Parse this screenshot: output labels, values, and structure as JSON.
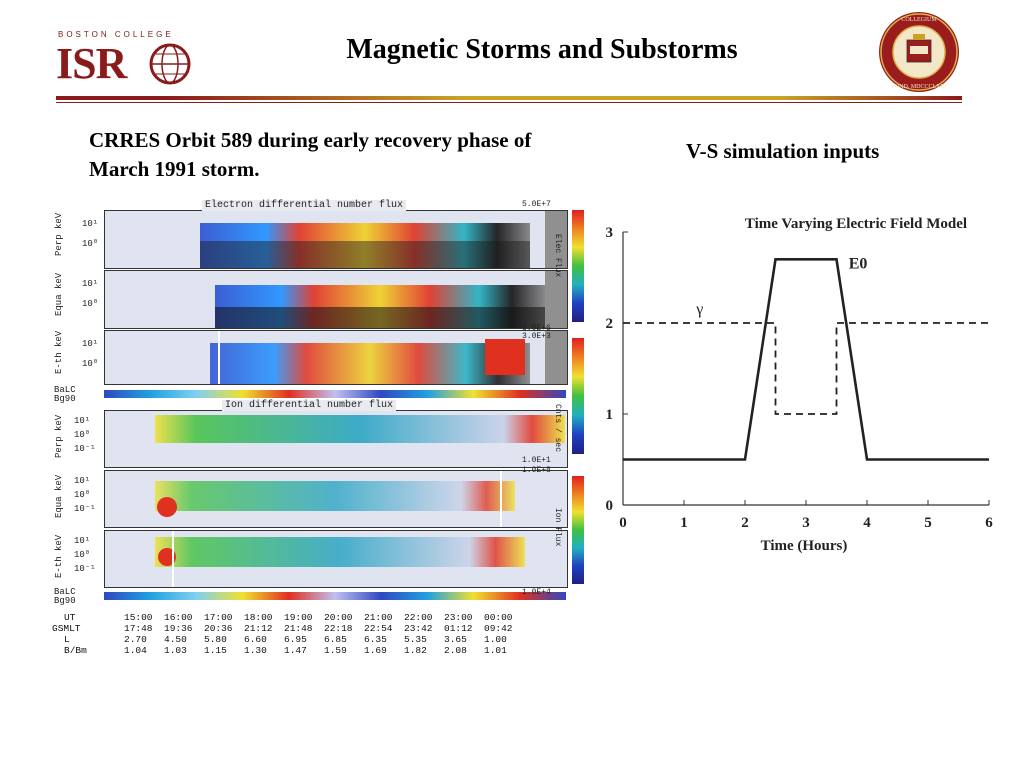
{
  "header": {
    "logo_small": "BOSTON COLLEGE",
    "logo_main": "ISR",
    "title": "Magnetic Storms  and Substorms",
    "seal_text": "COLLEGIUM BOSTONIENSE FUND. MDCCCLXIII"
  },
  "captions": {
    "left": "CRRES Orbit 589 during early recovery phase of March 1991 storm.",
    "right": "V-S simulation inputs"
  },
  "crres": {
    "electron_title": "Electron differential number flux",
    "ion_title": "Ion differential number flux",
    "panels": [
      {
        "label": "Perp\nkeV",
        "ticks": [
          "10¹",
          "10⁰"
        ]
      },
      {
        "label": "Equa\nkeV",
        "ticks": [
          "10¹",
          "10⁰"
        ]
      },
      {
        "label": "E-th\nkeV",
        "ticks": [
          "10¹",
          "10⁰"
        ]
      },
      {
        "label": "Perp\nkeV",
        "ticks": [
          "10¹",
          "10⁰",
          "10⁻¹"
        ]
      },
      {
        "label": "Equa\nkeV",
        "ticks": [
          "10¹",
          "10⁰",
          "10⁻¹"
        ]
      },
      {
        "label": "E-th\nkeV",
        "ticks": [
          "10¹",
          "10⁰",
          "10⁻¹"
        ]
      }
    ],
    "strip_labels": [
      "BaLC\nBg90",
      "BaLC\nBg90"
    ],
    "colorbar": {
      "elec_max": "5.0E+7",
      "elec_min": "3.0E+6",
      "elec_label": "Elec Flux",
      "units_label": "Cnts / sec",
      "mid_top": "3.0E+3",
      "mid_bottom": "1.0E+1",
      "ion_max": "1.0E+8",
      "ion_min": "1.0E+4",
      "ion_label": "Ion Flux"
    },
    "table": {
      "rows": [
        {
          "label": "UT",
          "values": [
            "15:00",
            "16:00",
            "17:00",
            "18:00",
            "19:00",
            "20:00",
            "21:00",
            "22:00",
            "23:00",
            "00:00"
          ]
        },
        {
          "label": "GSMLT",
          "values": [
            "17:48",
            "19:36",
            "20:36",
            "21:12",
            "21:48",
            "22:18",
            "22:54",
            "23:42",
            "01:12",
            "09:42"
          ]
        },
        {
          "label": "L",
          "values": [
            "2.70",
            "4.50",
            "5.80",
            "6.60",
            "6.95",
            "6.85",
            "6.35",
            "5.35",
            "3.65",
            "1.00"
          ]
        },
        {
          "label": "B/Bm",
          "values": [
            "1.04",
            "1.03",
            "1.15",
            "1.30",
            "1.47",
            "1.59",
            "1.69",
            "1.82",
            "2.08",
            "1.01"
          ]
        }
      ]
    }
  },
  "chart_data": {
    "type": "line",
    "title": "Time Varying Electric Field Model",
    "xlabel": "Time (Hours)",
    "ylabel": "",
    "xlim": [
      0,
      6
    ],
    "ylim": [
      0,
      3
    ],
    "xticks": [
      "0",
      "1",
      "2",
      "3",
      "4",
      "5",
      "6"
    ],
    "yticks": [
      "0",
      "1",
      "2",
      "3"
    ],
    "grid": false,
    "series": [
      {
        "name": "E0",
        "style": "solid",
        "x": [
          0,
          2,
          2.5,
          3.5,
          4,
          6
        ],
        "y": [
          0.5,
          0.5,
          2.7,
          2.7,
          0.5,
          0.5
        ]
      },
      {
        "name": "γ",
        "style": "dashed",
        "x": [
          0,
          2.5,
          2.5,
          3.5,
          3.5,
          6
        ],
        "y": [
          2,
          2,
          1,
          1,
          2,
          2
        ]
      }
    ]
  }
}
